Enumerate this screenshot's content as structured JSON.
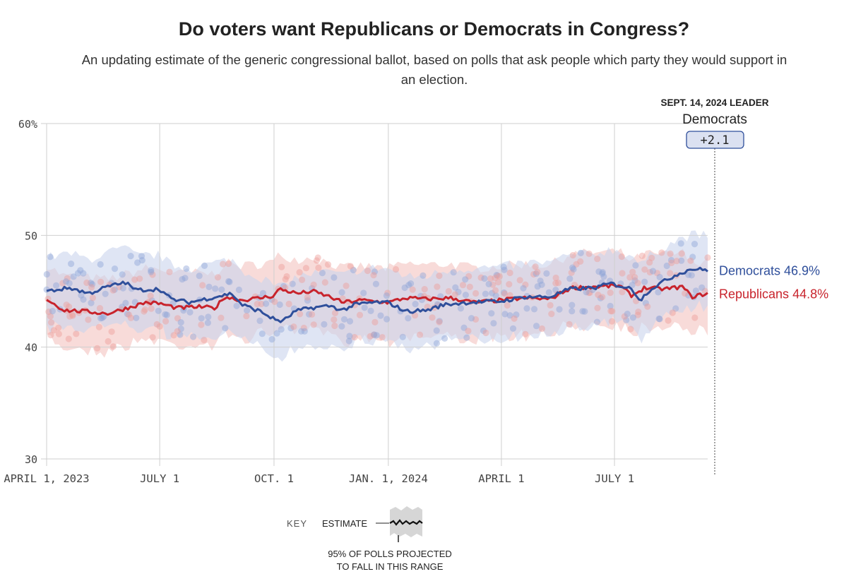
{
  "title": "Do voters want Republicans or Democrats in Congress?",
  "subtitle": "An updating estimate of the generic congressional ballot, based on polls that ask people which party they would support in an election.",
  "leader": {
    "heading": "SEPT. 14, 2024 LEADER",
    "party": "Democrats",
    "margin": "+2.1"
  },
  "key": {
    "label": "KEY",
    "estimate_label": "ESTIMATE",
    "range_label_line1": "95% OF POLLS PROJECTED",
    "range_label_line2": "TO FALL IN THIS RANGE"
  },
  "colors": {
    "democrats": "#2f4f9b",
    "republicans": "#c8232c",
    "dem_band": "#c9d3ec",
    "rep_band": "#f3c3c0",
    "grid": "#cfcfcf"
  },
  "chart_data": {
    "type": "line",
    "title": "Do voters want Republicans or Democrats in Congress?",
    "xlabel": "",
    "ylabel": "",
    "ylim": [
      30,
      60
    ],
    "y_ticks": [
      30,
      40,
      50,
      60
    ],
    "y_tick_labels": [
      "30",
      "40",
      "50",
      "60%"
    ],
    "x_domain": [
      "2023-04-01",
      "2024-09-14"
    ],
    "x_ticks": [
      {
        "date": "2023-04-01",
        "label": "APRIL 1, 2023"
      },
      {
        "date": "2023-07-01",
        "label": "JULY 1"
      },
      {
        "date": "2023-10-01",
        "label": "OCT. 1"
      },
      {
        "date": "2024-01-01",
        "label": "JAN. 1, 2024"
      },
      {
        "date": "2024-04-01",
        "label": "APRIL 1"
      },
      {
        "date": "2024-07-01",
        "label": "JULY 1"
      }
    ],
    "series": [
      {
        "name": "Democrats",
        "end_label": "Democrats 46.9%",
        "final_value": 46.9,
        "points": [
          [
            "2023-04-01",
            45.0
          ],
          [
            "2023-04-20",
            45.3
          ],
          [
            "2023-05-05",
            44.8
          ],
          [
            "2023-05-20",
            45.4
          ],
          [
            "2023-06-03",
            45.8
          ],
          [
            "2023-06-12",
            45.1
          ],
          [
            "2023-07-01",
            45.2
          ],
          [
            "2023-07-10",
            44.3
          ],
          [
            "2023-07-25",
            44.0
          ],
          [
            "2023-08-15",
            44.5
          ],
          [
            "2023-08-28",
            44.8
          ],
          [
            "2023-09-05",
            43.8
          ],
          [
            "2023-09-20",
            43.2
          ],
          [
            "2023-10-01",
            42.5
          ],
          [
            "2023-10-08",
            42.3
          ],
          [
            "2023-10-18",
            43.2
          ],
          [
            "2023-10-30",
            43.5
          ],
          [
            "2023-11-15",
            43.7
          ],
          [
            "2023-11-25",
            43.3
          ],
          [
            "2023-12-05",
            43.8
          ],
          [
            "2023-12-20",
            44.0
          ],
          [
            "2024-01-01",
            44.0
          ],
          [
            "2024-01-15",
            43.2
          ],
          [
            "2024-02-01",
            43.3
          ],
          [
            "2024-02-15",
            43.8
          ],
          [
            "2024-03-05",
            44.0
          ],
          [
            "2024-04-01",
            44.1
          ],
          [
            "2024-04-20",
            44.5
          ],
          [
            "2024-05-10",
            44.5
          ],
          [
            "2024-05-26",
            45.2
          ],
          [
            "2024-06-15",
            45.3
          ],
          [
            "2024-06-28",
            45.7
          ],
          [
            "2024-07-15",
            45.2
          ],
          [
            "2024-07-22",
            44.2
          ],
          [
            "2024-07-28",
            45.0
          ],
          [
            "2024-08-05",
            45.6
          ],
          [
            "2024-08-20",
            46.5
          ],
          [
            "2024-09-01",
            47.0
          ],
          [
            "2024-09-14",
            46.9
          ]
        ]
      },
      {
        "name": "Republicans",
        "end_label": "Republicans 44.8%",
        "final_value": 44.8,
        "points": [
          [
            "2023-04-01",
            44.3
          ],
          [
            "2023-04-15",
            43.3
          ],
          [
            "2023-05-01",
            43.2
          ],
          [
            "2023-05-20",
            43.0
          ],
          [
            "2023-06-05",
            43.5
          ],
          [
            "2023-06-20",
            44.0
          ],
          [
            "2023-07-01",
            43.9
          ],
          [
            "2023-07-15",
            43.5
          ],
          [
            "2023-08-01",
            43.6
          ],
          [
            "2023-08-15",
            43.5
          ],
          [
            "2023-08-22",
            44.5
          ],
          [
            "2023-09-05",
            44.2
          ],
          [
            "2023-09-20",
            44.4
          ],
          [
            "2023-10-01",
            44.6
          ],
          [
            "2023-10-05",
            45.2
          ],
          [
            "2023-10-20",
            44.8
          ],
          [
            "2023-11-01",
            45.0
          ],
          [
            "2023-11-15",
            44.5
          ],
          [
            "2023-11-25",
            44.0
          ],
          [
            "2023-12-10",
            44.2
          ],
          [
            "2024-01-01",
            44.0
          ],
          [
            "2024-01-15",
            44.4
          ],
          [
            "2024-02-01",
            44.3
          ],
          [
            "2024-02-20",
            44.4
          ],
          [
            "2024-03-10",
            44.0
          ],
          [
            "2024-04-01",
            44.2
          ],
          [
            "2024-04-20",
            44.4
          ],
          [
            "2024-05-10",
            44.3
          ],
          [
            "2024-05-27",
            45.3
          ],
          [
            "2024-06-15",
            45.4
          ],
          [
            "2024-07-05",
            45.5
          ],
          [
            "2024-07-15",
            44.6
          ],
          [
            "2024-07-25",
            45.3
          ],
          [
            "2024-08-10",
            45.2
          ],
          [
            "2024-08-25",
            45.4
          ],
          [
            "2024-09-01",
            44.5
          ],
          [
            "2024-09-14",
            44.8
          ]
        ]
      }
    ]
  }
}
